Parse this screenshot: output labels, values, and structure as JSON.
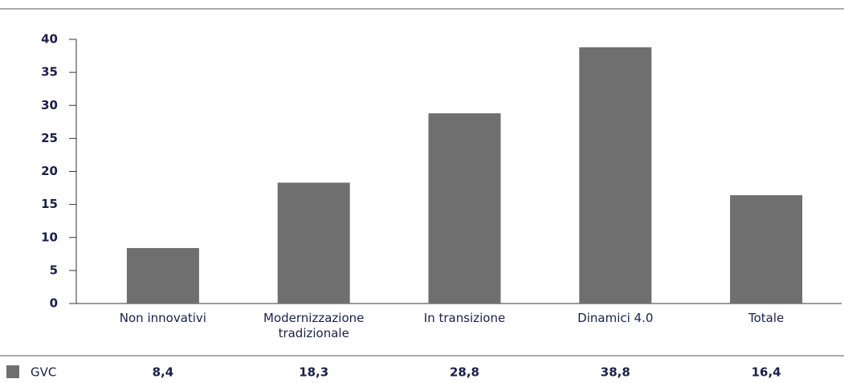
{
  "chart_data": {
    "type": "bar",
    "categories": [
      "Non innovativi",
      "Modernizzazione tradizionale",
      "In transizione",
      "Dinamici 4.0",
      "Totale"
    ],
    "series": [
      {
        "name": "GVC",
        "color": "#6f6f6f",
        "values": [
          8.4,
          18.3,
          28.8,
          38.8,
          16.4
        ],
        "value_labels": [
          "8,4",
          "18,3",
          "28,8",
          "38,8",
          "16,4"
        ]
      }
    ],
    "ylim": [
      0,
      40
    ],
    "yticks": [
      0,
      5,
      10,
      15,
      20,
      25,
      30,
      35,
      40
    ]
  }
}
